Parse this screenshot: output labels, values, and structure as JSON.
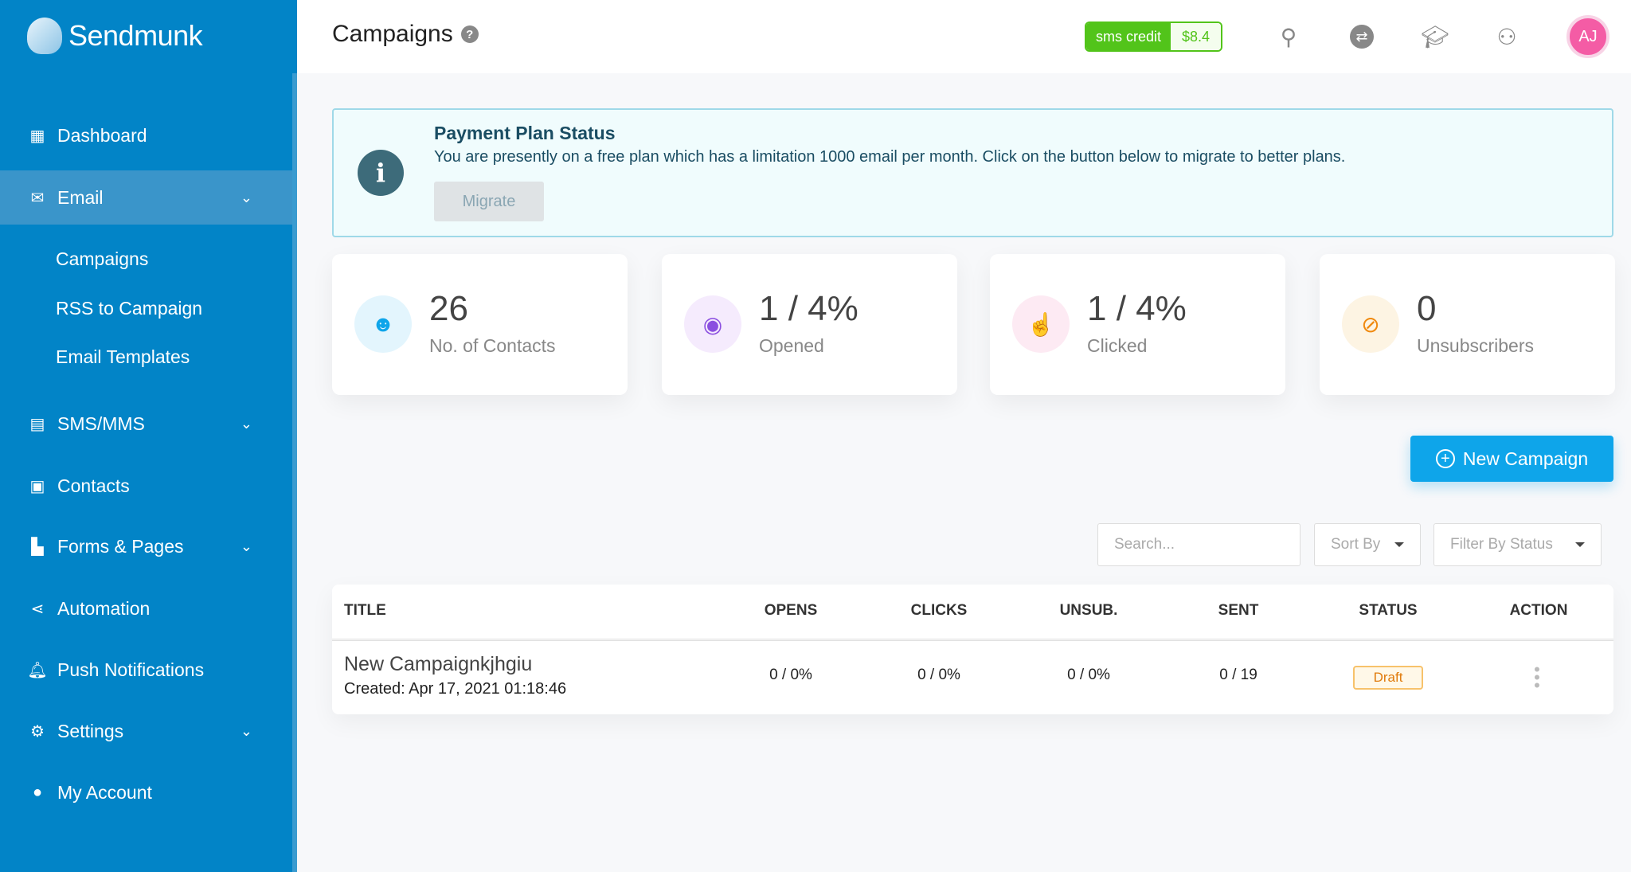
{
  "brand": "Sendmunk",
  "sidebar": {
    "items": [
      {
        "label": "Dashboard"
      },
      {
        "label": "Email"
      },
      {
        "label": "SMS/MMS"
      },
      {
        "label": "Contacts"
      },
      {
        "label": "Forms & Pages"
      },
      {
        "label": "Automation"
      },
      {
        "label": "Push Notifications"
      },
      {
        "label": "Settings"
      },
      {
        "label": "My Account"
      }
    ],
    "email_sub": [
      "Campaigns",
      "RSS to Campaign",
      "Email Templates"
    ]
  },
  "header": {
    "title": "Campaigns",
    "sms_credit_label": "sms credit",
    "sms_credit_value": "$8.4",
    "avatar_initials": "AJ"
  },
  "banner": {
    "title": "Payment Plan Status",
    "text": "You are presently on a free plan which has a limitation 1000 email per month. Click on the button below to migrate to better plans.",
    "button": "Migrate"
  },
  "stats": [
    {
      "value": "26",
      "label": "No. of Contacts",
      "color": "#0ea5ea"
    },
    {
      "value": "1 / 4%",
      "label": "Opened",
      "color": "#8b4fe0"
    },
    {
      "value": "1 / 4%",
      "label": "Clicked",
      "color": "#e8288f"
    },
    {
      "value": "0",
      "label": "Unsubscribers",
      "color": "#f08a10"
    }
  ],
  "new_campaign": "New Campaign",
  "filters": {
    "search_placeholder": "Search...",
    "sort": "Sort By",
    "status": "Filter By Status"
  },
  "table": {
    "headers": [
      "TITLE",
      "OPENS",
      "CLICKS",
      "UNSUB.",
      "SENT",
      "STATUS",
      "ACTION"
    ],
    "rows": [
      {
        "title": "New Campaignkjhgiu",
        "created": "Created: Apr 17, 2021 01:18:46",
        "opens": "0 / 0%",
        "clicks": "0 / 0%",
        "unsub": "0 / 0%",
        "sent": "0 / 19",
        "status": "Draft"
      }
    ]
  }
}
